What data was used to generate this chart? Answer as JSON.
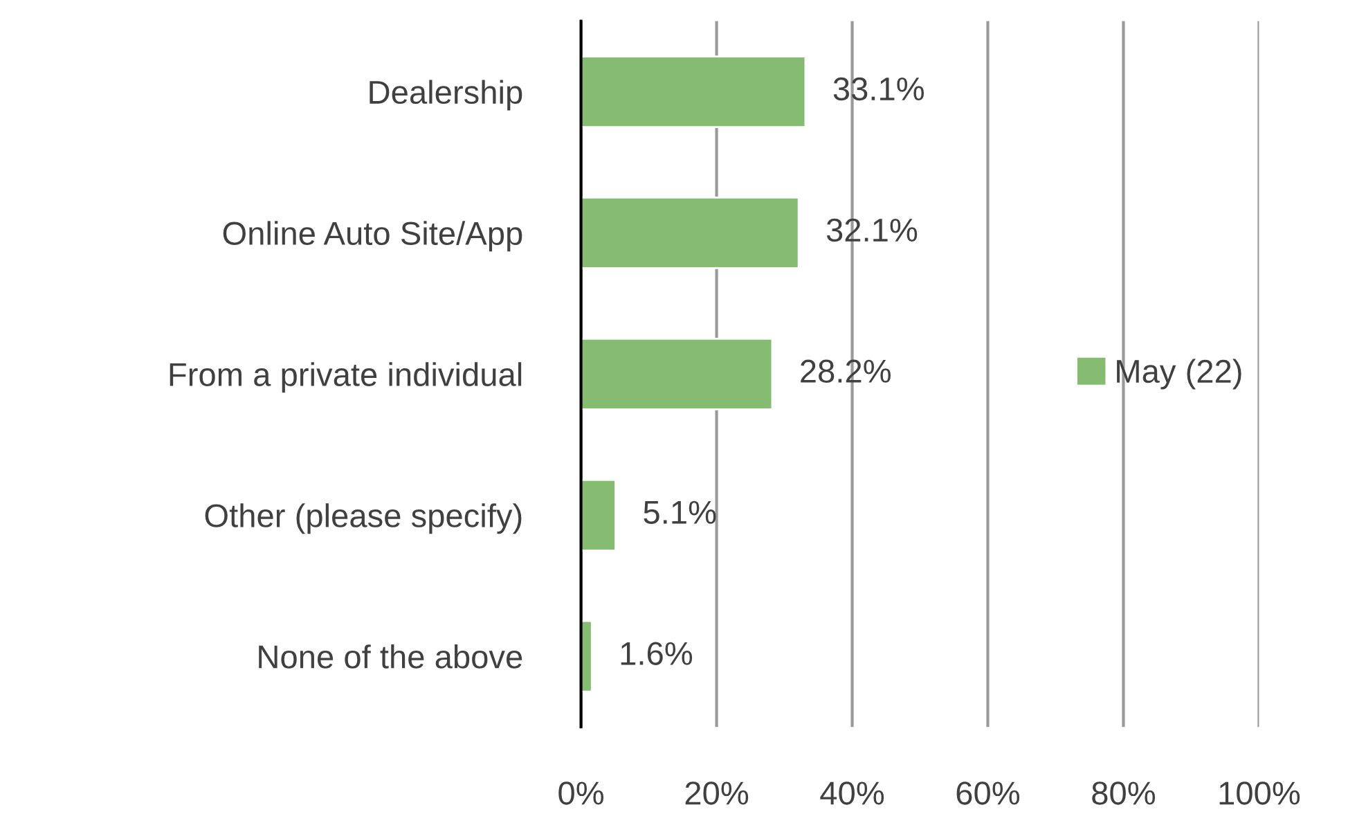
{
  "chart_data": {
    "type": "bar",
    "orientation": "horizontal",
    "categories": [
      "Dealership",
      "Online Auto Site/App",
      "From a private individual",
      "Other (please specify)",
      "None of the above"
    ],
    "series": [
      {
        "name": "May (22)",
        "color": "#86bc72",
        "values": [
          33.1,
          32.1,
          28.2,
          5.1,
          1.6
        ],
        "value_labels": [
          "33.1%",
          "32.1%",
          "28.2%",
          "5.1%",
          "1.6%"
        ]
      }
    ],
    "xlim": [
      0,
      100
    ],
    "xticks": [
      {
        "value": 0,
        "label": "0%"
      },
      {
        "value": 20,
        "label": "20%"
      },
      {
        "value": 40,
        "label": "40%"
      },
      {
        "value": 60,
        "label": "60%"
      },
      {
        "value": 80,
        "label": "80%"
      },
      {
        "value": 100,
        "label": "100%"
      }
    ],
    "grid": "x",
    "legend": "right"
  }
}
